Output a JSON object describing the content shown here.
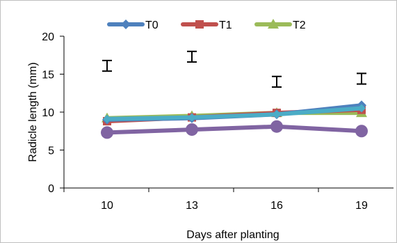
{
  "chart_data": {
    "type": "line",
    "title": "",
    "xlabel": "Days after planting",
    "ylabel": "Radicle length (mm)",
    "categories": [
      "10",
      "13",
      "16",
      "19"
    ],
    "ylim": [
      0,
      20
    ],
    "yticks": [
      "0",
      "5",
      "10",
      "15",
      "20"
    ],
    "grid": false,
    "legend_position": "top",
    "series": [
      {
        "name": "T0",
        "color": "#4E81BD",
        "marker": "diamond",
        "values": [
          9.0,
          9.2,
          9.7,
          10.9
        ]
      },
      {
        "name": "T1",
        "color": "#C0504D",
        "marker": "square",
        "values": [
          8.8,
          9.3,
          9.9,
          10.3
        ]
      },
      {
        "name": "T2",
        "color": "#9BBB59",
        "marker": "triangle",
        "values": [
          9.2,
          9.5,
          9.9,
          9.9
        ]
      },
      {
        "name": "",
        "color": "#4BACC6",
        "marker": "x",
        "values": [
          9.1,
          9.3,
          9.7,
          10.5
        ]
      },
      {
        "name": "",
        "color": "#8064A2",
        "marker": "circle",
        "values": [
          7.3,
          7.7,
          8.1,
          7.5
        ]
      }
    ],
    "error_bars": {
      "values": [
        16.1,
        17.3,
        14.0,
        14.4
      ],
      "half_range": 0.7
    }
  }
}
